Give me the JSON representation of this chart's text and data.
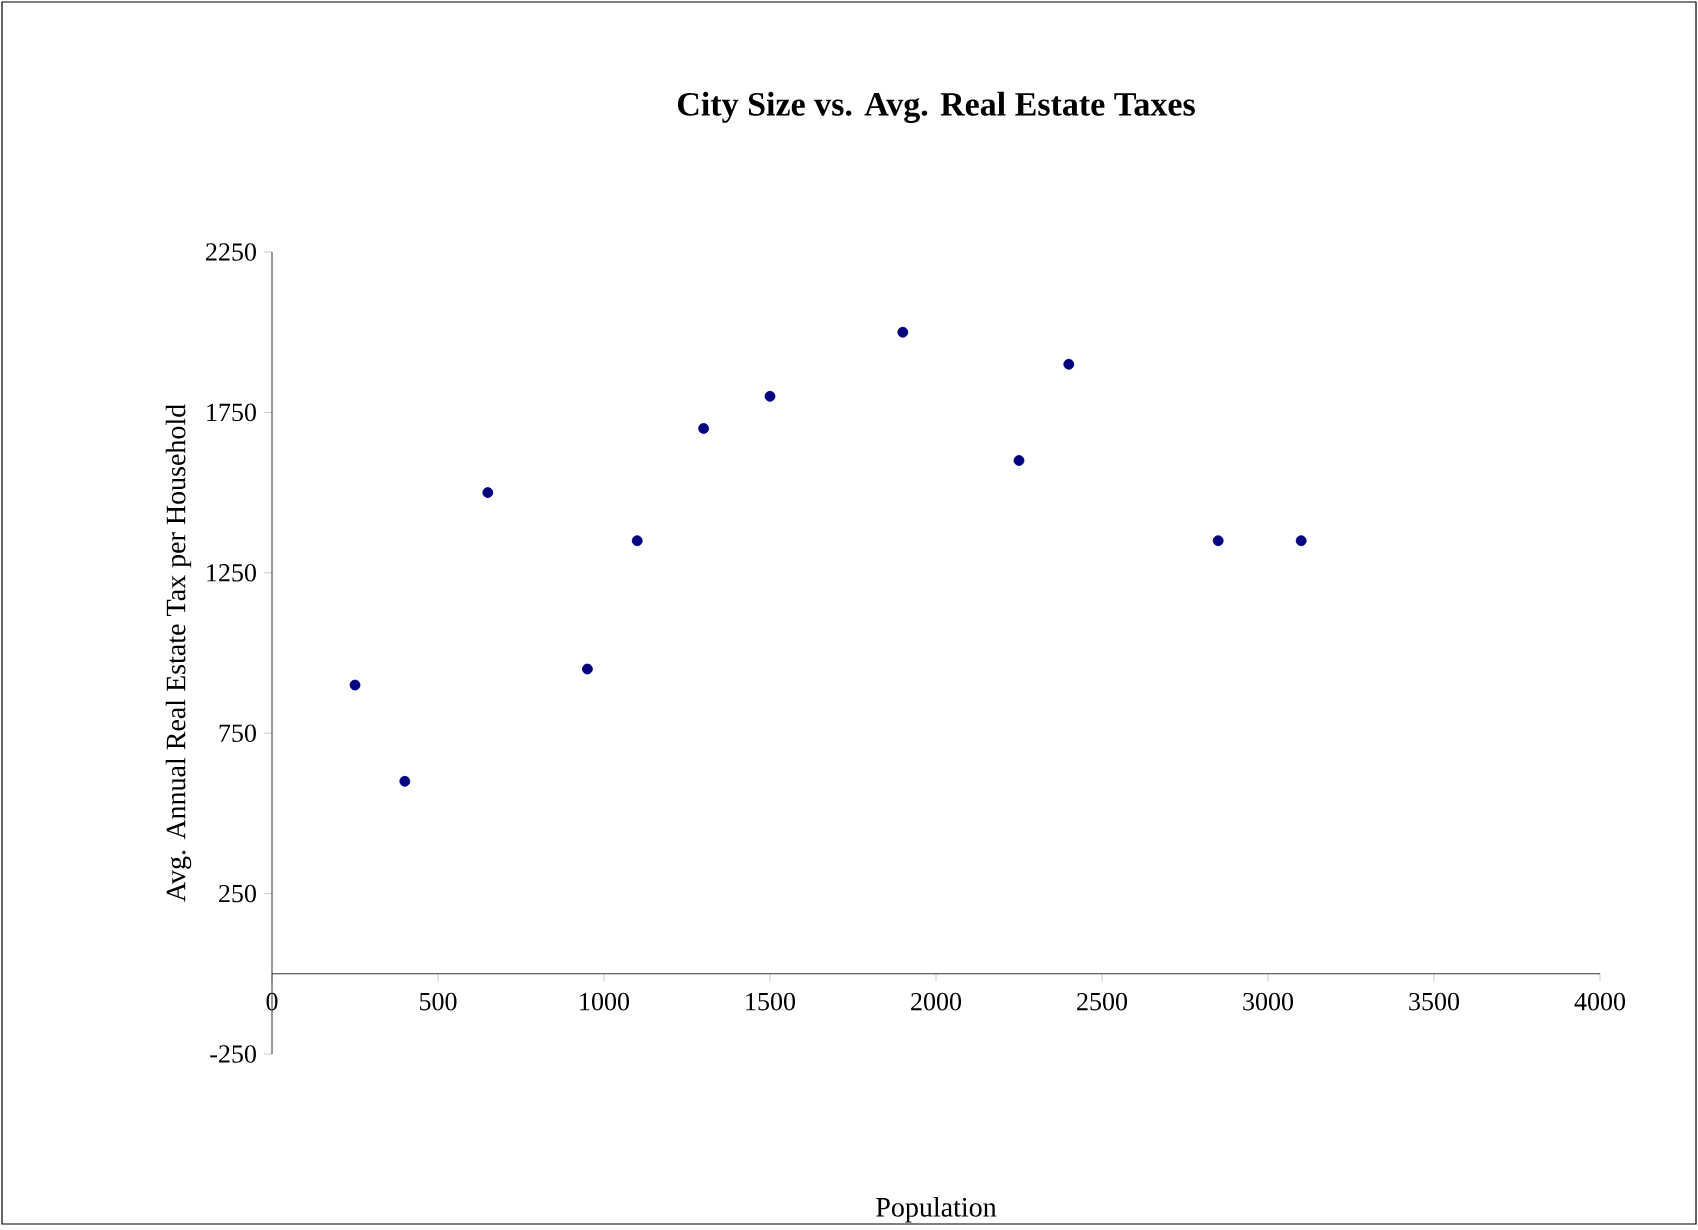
{
  "chart_data": {
    "type": "scatter",
    "title": "City Size vs. Avg. Real Estate Taxes",
    "xlabel": "Population",
    "ylabel": "Avg. Annual Real Estate Tax per Household",
    "x": [
      250,
      400,
      650,
      950,
      1100,
      1300,
      1500,
      1900,
      2250,
      2400,
      2850,
      3100
    ],
    "series": [
      {
        "color": "#000080",
        "values": [
          900,
          600,
          1500,
          950,
          1350,
          1700,
          1800,
          2000,
          1600,
          1900,
          1350,
          1350
        ]
      }
    ],
    "xlim": [
      0,
      4000
    ],
    "xticks": [
      0,
      500,
      1000,
      1500,
      2000,
      2500,
      3000,
      3500,
      4000
    ],
    "ylim": [
      -250,
      2250
    ],
    "yticks": [
      -250,
      250,
      750,
      1250,
      1750,
      2250
    ],
    "grid": false
  }
}
